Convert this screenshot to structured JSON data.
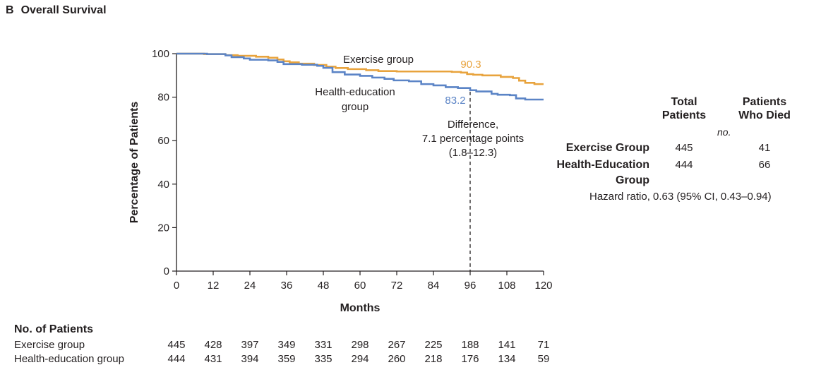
{
  "panel": {
    "letter": "B",
    "title": "Overall Survival"
  },
  "chart_data": {
    "type": "line",
    "xlabel": "Months",
    "ylabel": "Percentage of Patients",
    "xlim": [
      0,
      120
    ],
    "ylim": [
      0,
      100
    ],
    "xticks": [
      0,
      12,
      24,
      36,
      48,
      60,
      72,
      84,
      96,
      108,
      120
    ],
    "yticks": [
      0,
      20,
      40,
      60,
      80,
      100
    ],
    "grid": false,
    "series": [
      {
        "name": "Exercise group",
        "color": "#e8a33d",
        "x": [
          0,
          9,
          16,
          20,
          26,
          30,
          33,
          35,
          37,
          40,
          45,
          49,
          52,
          56,
          62,
          66,
          72,
          77,
          82,
          86,
          90,
          93,
          95,
          97,
          100,
          104,
          106,
          110,
          112,
          114,
          117,
          120
        ],
        "y": [
          100,
          99.8,
          99.3,
          99.0,
          98.6,
          98.1,
          97.3,
          96.5,
          96.0,
          95.4,
          94.8,
          94.0,
          93.4,
          92.9,
          92.4,
          92.0,
          91.8,
          91.8,
          91.8,
          91.8,
          91.6,
          91.3,
          90.6,
          90.3,
          90.0,
          90.0,
          89.3,
          88.8,
          87.6,
          86.6,
          86.0,
          86.0
        ]
      },
      {
        "name": "Health-education group",
        "color": "#5b84c6",
        "x": [
          0,
          10,
          16,
          18,
          22,
          24,
          30,
          33,
          35,
          41,
          46,
          48,
          51,
          55,
          60,
          64,
          68,
          71,
          76,
          80,
          84,
          88,
          92,
          96,
          98,
          103,
          105,
          109,
          111,
          114,
          120
        ],
        "y": [
          100,
          99.8,
          99.2,
          98.4,
          97.8,
          97.2,
          96.9,
          96.2,
          95.2,
          94.9,
          94.4,
          93.5,
          91.5,
          90.4,
          89.8,
          89.0,
          88.4,
          87.7,
          87.3,
          86.0,
          85.4,
          84.6,
          84.2,
          83.2,
          82.6,
          81.5,
          81.1,
          80.9,
          79.4,
          78.9,
          78.9
        ]
      }
    ],
    "annotations": {
      "marker_month": 96,
      "exercise_value": "90.3",
      "health_value": "83.2",
      "exercise_label": "Exercise group",
      "health_label_line1": "Health-education",
      "health_label_line2": "group",
      "difference_line1": "Difference,",
      "difference_line2": "7.1 percentage points",
      "difference_line3": "(1.8–12.3)"
    }
  },
  "summary_table": {
    "col_total_line1": "Total",
    "col_total_line2": "Patients",
    "col_died_line1": "Patients",
    "col_died_line2": "Who Died",
    "unit": "no.",
    "exercise_label": "Exercise Group",
    "exercise_total": "445",
    "exercise_died": "41",
    "health_label_line1": "Health-Education",
    "health_label_line2": "Group",
    "health_total": "444",
    "health_died": "66",
    "hazard_ratio": "Hazard ratio, 0.63 (95% CI, 0.43–0.94)"
  },
  "at_risk": {
    "title": "No. of Patients",
    "rows": [
      {
        "label": "Exercise group",
        "values": [
          "445",
          "428",
          "397",
          "349",
          "331",
          "298",
          "267",
          "225",
          "188",
          "141",
          "71"
        ]
      },
      {
        "label": "Health-education group",
        "values": [
          "444",
          "431",
          "394",
          "359",
          "335",
          "294",
          "260",
          "218",
          "176",
          "134",
          "59"
        ]
      }
    ]
  }
}
